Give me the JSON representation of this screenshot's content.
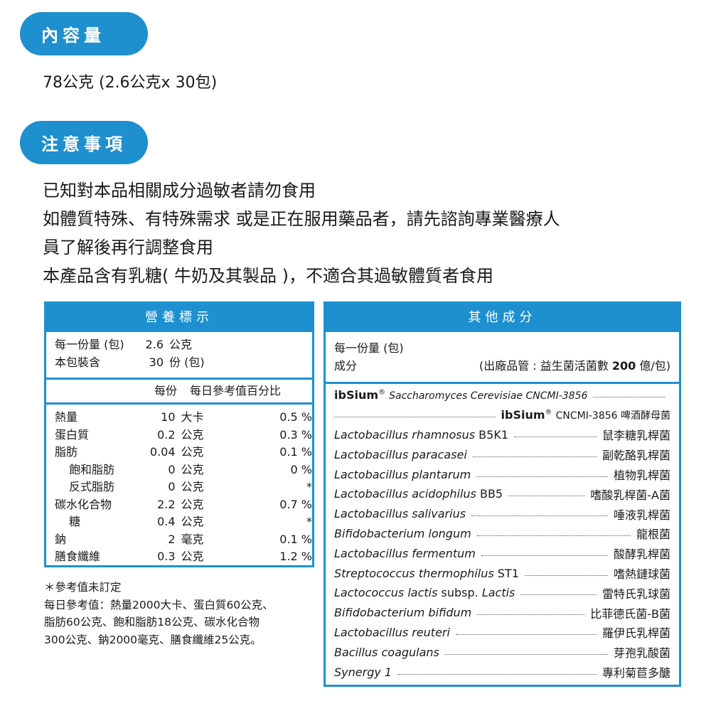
{
  "content_section": {
    "label": "內容量",
    "value": "78公克 (2.6公克x 30包)"
  },
  "notice_section": {
    "label": "注意事項",
    "lines": [
      "已知對本品相關成分過敏者請勿食用",
      "如體質特殊、有特殊需求 或是正在服用藥品者，請先諮詢專業醫療人",
      "員了解後再行調整食用",
      "本產品含有乳糖( 牛奶及其製品 )，不適合其過敏體質者食用"
    ]
  },
  "nutrition": {
    "title": "營養標示",
    "serving_label": "每一份量 (包)",
    "serving_value": "2.6",
    "serving_unit": "公克",
    "pack_label": "本包裝含",
    "pack_value": "30",
    "pack_unit": "份 (包)",
    "col_per": "每份",
    "col_dv": "每日參考值百分比",
    "rows": [
      {
        "name": "熱量",
        "value": "10",
        "unit": "大卡",
        "pct": "0.5 %",
        "indent": false
      },
      {
        "name": "蛋白質",
        "value": "0.2",
        "unit": "公克",
        "pct": "0.3 %",
        "indent": false
      },
      {
        "name": "脂肪",
        "value": "0.04",
        "unit": "公克",
        "pct": "0.1 %",
        "indent": false
      },
      {
        "name": "飽和脂肪",
        "value": "0",
        "unit": "公克",
        "pct": "0 %",
        "indent": true
      },
      {
        "name": "反式脂肪",
        "value": "0",
        "unit": "公克",
        "pct": "*",
        "indent": true
      },
      {
        "name": "碳水化合物",
        "value": "2.2",
        "unit": "公克",
        "pct": "0.7 %",
        "indent": false
      },
      {
        "name": "糖",
        "value": "0.4",
        "unit": "公克",
        "pct": "*",
        "indent": true
      },
      {
        "name": "鈉",
        "value": "2",
        "unit": "毫克",
        "pct": "0.1 %",
        "indent": false
      },
      {
        "name": "膳食纖維",
        "value": "0.3",
        "unit": "公克",
        "pct": "1.2 %",
        "indent": false
      }
    ],
    "footnotes": [
      "＊參考值未訂定",
      "每日參考值：熱量2000大卡、蛋白質60公克、",
      "脂肪60公克、飽和脂肪18公克、碳水化合物",
      "300公克、鈉2000毫克、膳食纖維25公克。"
    ]
  },
  "other": {
    "title": "其他成分",
    "serving_label": "每一份量 (包)",
    "ingredient_label": "成分",
    "qc_note_prefix": "(出廠品管 : 益生菌活菌數 ",
    "qc_count": "200",
    "qc_note_suffix": " 億/包)",
    "ibsium": {
      "brand": "ibSium",
      "reg": "®",
      "latin": "Saccharomyces Cerevisiae CNCMI-3856",
      "zh_code": "CNCMI-3856 啤酒酵母菌"
    },
    "items": [
      {
        "latin": "Lactobacillus rhamnosus",
        "suffix": " B5K1",
        "zh": "鼠李糖乳桿菌"
      },
      {
        "latin": "Lactobacillus paracasei",
        "suffix": "",
        "zh": "副乾酪乳桿菌"
      },
      {
        "latin": "Lactobacillus plantarum",
        "suffix": "",
        "zh": "植物乳桿菌"
      },
      {
        "latin": "Lactobacillus acidophilus",
        "suffix": " BB5",
        "zh": "嗜酸乳桿菌-A菌"
      },
      {
        "latin": "Lactobacillus salivarius",
        "suffix": "",
        "zh": "唾液乳桿菌"
      },
      {
        "latin": "Bifidobacterium longum",
        "suffix": "",
        "zh": "龍根菌"
      },
      {
        "latin": "Lactobacillus fermentum",
        "suffix": "",
        "zh": "酸酵乳桿菌"
      },
      {
        "latin": "Streptococcus thermophilus",
        "suffix": " ST1",
        "zh": "嗜熱鏈球菌"
      },
      {
        "latin": "Lactococcus lactis",
        "suffix": " subsp. ",
        "latin2": "Lactis",
        "zh": "雷特氏乳球菌"
      },
      {
        "latin": "Bifidobacterium bifidum",
        "suffix": "",
        "zh": "比菲德氏菌-B菌"
      },
      {
        "latin": "Lactobacillus reuteri",
        "suffix": "",
        "zh": "羅伊氏乳桿菌"
      },
      {
        "latin": "Bacillus coagulans",
        "suffix": "",
        "zh": "芽孢乳酸菌"
      },
      {
        "latin": "Synergy 1",
        "suffix": "",
        "zh": "專利菊苣多醣"
      }
    ]
  },
  "colors": {
    "accent": "#1e8fcf",
    "text": "#1a1a1a"
  }
}
